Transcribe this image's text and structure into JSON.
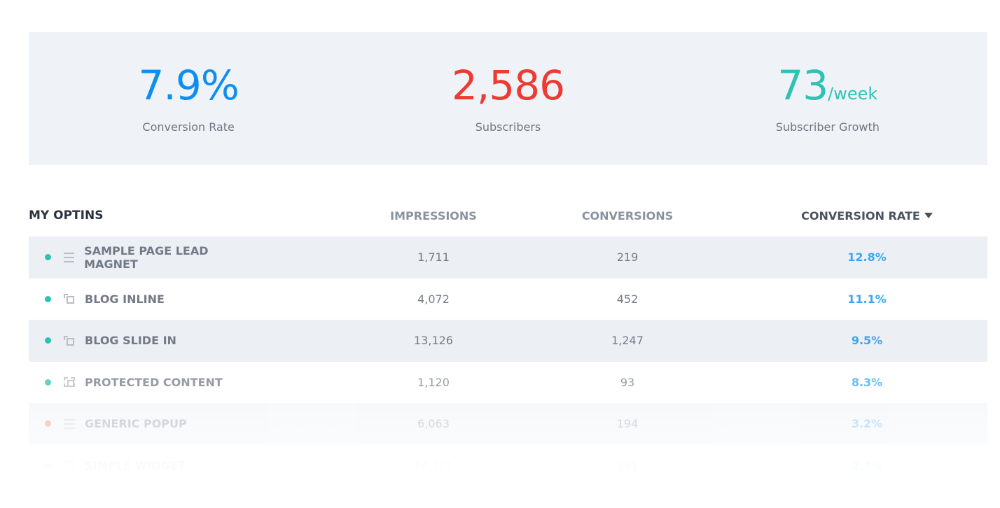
{
  "stats": [
    {
      "value": "7.9%",
      "unit": "",
      "label": "Conversion Rate",
      "color": "#0e8ff0"
    },
    {
      "value": "2,586",
      "unit": "",
      "label": "Subscribers",
      "color": "#ee3a32"
    },
    {
      "value": "73",
      "unit": "/week",
      "label": "Subscriber Growth",
      "color": "#2ec2b5"
    }
  ],
  "table": {
    "headers": [
      "MY OPTINS",
      "IMPRESSIONS",
      "CONVERSIONS",
      "CONVERSION RATE"
    ],
    "sort_icon": "caret-down-icon",
    "rows": [
      {
        "name": "SAMPLE PAGE LEAD MAGNET",
        "icon": "list",
        "status": "#2ec2b5",
        "impressions": "1,711",
        "conversions": "219",
        "rate": "12.8%"
      },
      {
        "name": "BLOG INLINE",
        "icon": "box",
        "status": "#2ec2b5",
        "impressions": "4,072",
        "conversions": "452",
        "rate": "11.1%"
      },
      {
        "name": "BLOG SLIDE IN",
        "icon": "box",
        "status": "#2ec2b5",
        "impressions": "13,126",
        "conversions": "1,247",
        "rate": "9.5%"
      },
      {
        "name": "PROTECTED CONTENT",
        "icon": "prot",
        "status": "#2ec2b5",
        "impressions": "1,120",
        "conversions": "93",
        "rate": "8.3%"
      },
      {
        "name": "GENERIC POPUP",
        "icon": "list",
        "status": "#ee5a50",
        "impressions": "6,063",
        "conversions": "194",
        "rate": "3.2%"
      },
      {
        "name": "SIMPLE WIDGET",
        "icon": "widget",
        "status": "#2ec2b5",
        "impressions": "14,111",
        "conversions": "381",
        "rate": "2.7%"
      }
    ]
  }
}
